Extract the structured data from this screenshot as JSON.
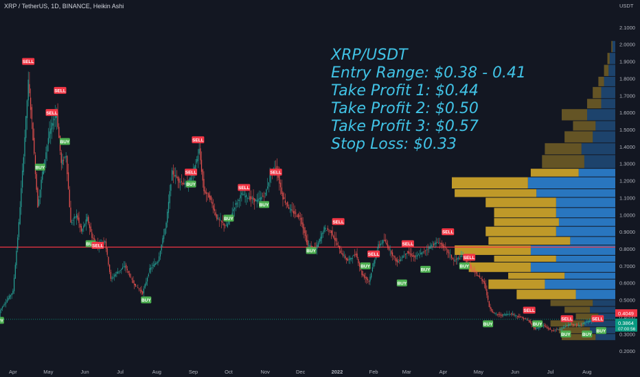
{
  "header": {
    "symbol_line": "XRP / TetherUS, 1D, BINANCE, Heikin Ashi"
  },
  "annotation": {
    "lines": [
      "XRP/USDT",
      "Entry Range: $0.38 - 0.41",
      "Take Profit 1: $0.44",
      "Take Profit 2: $0.50",
      "Take Profit 3: $0.57",
      "Stop Loss: $0.33"
    ]
  },
  "chart_data": {
    "type": "candlestick",
    "currency_label": "USDT",
    "y_axis": {
      "ticks": [
        "2.1000",
        "2.0000",
        "1.9000",
        "1.8000",
        "1.7000",
        "1.6000",
        "1.5000",
        "1.4000",
        "1.3000",
        "1.2000",
        "1.1000",
        "1.0000",
        "0.9000",
        "0.8000",
        "0.7000",
        "0.6000",
        "0.5000",
        "0.4000",
        "0.3000",
        "0.2000"
      ],
      "tick_values": [
        2.1,
        2.0,
        1.9,
        1.8,
        1.7,
        1.6,
        1.5,
        1.4,
        1.3,
        1.2,
        1.1,
        1.0,
        0.9,
        0.8,
        0.7,
        0.6,
        0.5,
        0.4,
        0.3,
        0.2
      ],
      "ylim": [
        0.12,
        2.18
      ]
    },
    "x_axis": {
      "labels": [
        "Apr",
        "May",
        "Jun",
        "Jul",
        "Aug",
        "Sep",
        "Oct",
        "Nov",
        "Dec",
        "2022",
        "Feb",
        "Mar",
        "Apr",
        "May",
        "Jun",
        "Jul",
        "Aug"
      ],
      "xlim": [
        "2021-03-21",
        "2022-08-25"
      ]
    },
    "price_path": [
      [
        "2021-03-21",
        0.44
      ],
      [
        "2021-04-01",
        0.55
      ],
      [
        "2021-04-06",
        0.95
      ],
      [
        "2021-04-10",
        1.35
      ],
      [
        "2021-04-14",
        1.78
      ],
      [
        "2021-04-17",
        1.55
      ],
      [
        "2021-04-22",
        1.05
      ],
      [
        "2021-04-26",
        1.25
      ],
      [
        "2021-05-01",
        1.45
      ],
      [
        "2021-05-05",
        1.55
      ],
      [
        "2021-05-08",
        1.6
      ],
      [
        "2021-05-12",
        1.3
      ],
      [
        "2021-05-16",
        1.35
      ],
      [
        "2021-05-20",
        0.95
      ],
      [
        "2021-05-25",
        1.0
      ],
      [
        "2021-05-29",
        0.9
      ],
      [
        "2021-06-03",
        0.98
      ],
      [
        "2021-06-07",
        0.87
      ],
      [
        "2021-06-12",
        0.82
      ],
      [
        "2021-06-18",
        0.85
      ],
      [
        "2021-06-23",
        0.62
      ],
      [
        "2021-06-28",
        0.66
      ],
      [
        "2021-07-05",
        0.7
      ],
      [
        "2021-07-12",
        0.6
      ],
      [
        "2021-07-20",
        0.54
      ],
      [
        "2021-07-26",
        0.68
      ],
      [
        "2021-08-02",
        0.73
      ],
      [
        "2021-08-09",
        0.95
      ],
      [
        "2021-08-14",
        1.25
      ],
      [
        "2021-08-20",
        1.2
      ],
      [
        "2021-08-27",
        1.17
      ],
      [
        "2021-09-02",
        1.27
      ],
      [
        "2021-09-06",
        1.38
      ],
      [
        "2021-09-10",
        1.14
      ],
      [
        "2021-09-15",
        1.1
      ],
      [
        "2021-09-21",
        0.98
      ],
      [
        "2021-09-29",
        0.93
      ],
      [
        "2021-10-06",
        1.05
      ],
      [
        "2021-10-12",
        1.12
      ],
      [
        "2021-10-18",
        1.1
      ],
      [
        "2021-10-25",
        1.08
      ],
      [
        "2021-11-01",
        1.12
      ],
      [
        "2021-11-06",
        1.25
      ],
      [
        "2021-11-10",
        1.28
      ],
      [
        "2021-11-16",
        1.1
      ],
      [
        "2021-11-22",
        1.03
      ],
      [
        "2021-12-01",
        0.98
      ],
      [
        "2021-12-07",
        0.82
      ],
      [
        "2021-12-14",
        0.8
      ],
      [
        "2021-12-21",
        0.92
      ],
      [
        "2021-12-27",
        0.9
      ],
      [
        "2022-01-04",
        0.78
      ],
      [
        "2022-01-10",
        0.73
      ],
      [
        "2022-01-17",
        0.77
      ],
      [
        "2022-01-22",
        0.65
      ],
      [
        "2022-01-28",
        0.61
      ],
      [
        "2022-02-05",
        0.82
      ],
      [
        "2022-02-10",
        0.85
      ],
      [
        "2022-02-14",
        0.8
      ],
      [
        "2022-02-21",
        0.72
      ],
      [
        "2022-03-01",
        0.78
      ],
      [
        "2022-03-08",
        0.75
      ],
      [
        "2022-03-15",
        0.78
      ],
      [
        "2022-03-22",
        0.82
      ],
      [
        "2022-03-28",
        0.84
      ],
      [
        "2022-04-03",
        0.8
      ],
      [
        "2022-04-10",
        0.73
      ],
      [
        "2022-04-18",
        0.76
      ],
      [
        "2022-04-25",
        0.68
      ],
      [
        "2022-05-02",
        0.63
      ],
      [
        "2022-05-06",
        0.6
      ],
      [
        "2022-05-10",
        0.46
      ],
      [
        "2022-05-14",
        0.42
      ],
      [
        "2022-05-20",
        0.41
      ],
      [
        "2022-05-28",
        0.42
      ],
      [
        "2022-06-05",
        0.4
      ],
      [
        "2022-06-12",
        0.38
      ],
      [
        "2022-06-18",
        0.33
      ],
      [
        "2022-06-25",
        0.35
      ],
      [
        "2022-07-02",
        0.32
      ],
      [
        "2022-07-10",
        0.33
      ],
      [
        "2022-07-18",
        0.36
      ],
      [
        "2022-07-24",
        0.35
      ],
      [
        "2022-08-01",
        0.37
      ],
      [
        "2022-08-05",
        0.38
      ],
      [
        "2022-08-09",
        0.3864
      ]
    ],
    "horizontal_levels": [
      {
        "price": 0.81,
        "color": "#f23645"
      },
      {
        "price": 0.3864,
        "color": "#089981"
      }
    ],
    "price_badges": [
      {
        "value": "0.4049",
        "price": 0.4049,
        "color": "#f23645"
      },
      {
        "value": "0.3864",
        "price": 0.3864,
        "color": "#089981",
        "sub": "07:00:56"
      }
    ],
    "signals": [
      {
        "label": "BUY",
        "date": "2021-03-20",
        "price": 0.38
      },
      {
        "label": "SELL",
        "date": "2021-04-14",
        "price": 1.9
      },
      {
        "label": "BUY",
        "date": "2021-04-24",
        "price": 1.28
      },
      {
        "label": "SELL",
        "date": "2021-05-04",
        "price": 1.6
      },
      {
        "label": "SELL",
        "date": "2021-05-11",
        "price": 1.73
      },
      {
        "label": "BUY",
        "date": "2021-05-15",
        "price": 1.43
      },
      {
        "label": "BUY",
        "date": "2021-06-06",
        "price": 0.83
      },
      {
        "label": "SELL",
        "date": "2021-06-12",
        "price": 0.82
      },
      {
        "label": "BUY",
        "date": "2021-07-23",
        "price": 0.5
      },
      {
        "label": "SELL",
        "date": "2021-08-30",
        "price": 1.25
      },
      {
        "label": "BUY",
        "date": "2021-08-30",
        "price": 1.18
      },
      {
        "label": "SELL",
        "date": "2021-09-05",
        "price": 1.44
      },
      {
        "label": "BUY",
        "date": "2021-10-01",
        "price": 0.98
      },
      {
        "label": "SELL",
        "date": "2021-10-14",
        "price": 1.16
      },
      {
        "label": "BUY",
        "date": "2021-10-31",
        "price": 1.06
      },
      {
        "label": "SELL",
        "date": "2021-11-10",
        "price": 1.25
      },
      {
        "label": "BUY",
        "date": "2021-12-10",
        "price": 0.79
      },
      {
        "label": "SELL",
        "date": "2022-01-02",
        "price": 0.96
      },
      {
        "label": "BUY",
        "date": "2022-01-25",
        "price": 0.7
      },
      {
        "label": "SELL",
        "date": "2022-02-01",
        "price": 0.77
      },
      {
        "label": "BUY",
        "date": "2022-02-25",
        "price": 0.6
      },
      {
        "label": "SELL",
        "date": "2022-03-02",
        "price": 0.83
      },
      {
        "label": "BUY",
        "date": "2022-03-17",
        "price": 0.68
      },
      {
        "label": "SELL",
        "date": "2022-04-05",
        "price": 0.9
      },
      {
        "label": "BUY",
        "date": "2022-04-19",
        "price": 0.7
      },
      {
        "label": "SELL",
        "date": "2022-04-23",
        "price": 0.75
      },
      {
        "label": "BUY",
        "date": "2022-05-09",
        "price": 0.36
      },
      {
        "label": "SELL",
        "date": "2022-06-13",
        "price": 0.44
      },
      {
        "label": "BUY",
        "date": "2022-06-20",
        "price": 0.36
      },
      {
        "label": "BUY",
        "date": "2022-07-14",
        "price": 0.3
      },
      {
        "label": "SELL",
        "date": "2022-07-15",
        "price": 0.39
      },
      {
        "label": "BUY",
        "date": "2022-08-01",
        "price": 0.3
      },
      {
        "label": "SELL",
        "date": "2022-08-10",
        "price": 0.39
      },
      {
        "label": "BUY",
        "date": "2022-08-13",
        "price": 0.32
      }
    ],
    "volume_profile": [
      {
        "low": 0.26,
        "high": 0.3,
        "up": 0.6,
        "down": 0.35
      },
      {
        "low": 0.3,
        "high": 0.34,
        "up": 0.55,
        "down": 0.45
      },
      {
        "low": 0.34,
        "high": 0.38,
        "up": 0.6,
        "down": 0.55
      },
      {
        "low": 0.38,
        "high": 0.42,
        "up": 0.4,
        "down": 0.3
      },
      {
        "low": 0.42,
        "high": 0.46,
        "up": 0.45,
        "down": 0.45
      },
      {
        "low": 0.46,
        "high": 0.5,
        "up": 0.75,
        "down": 0.4
      },
      {
        "low": 0.5,
        "high": 0.56,
        "up": 1.05,
        "down": 0.7
      },
      {
        "low": 0.56,
        "high": 0.62,
        "up": 1.0,
        "down": 1.25
      },
      {
        "low": 0.62,
        "high": 0.66,
        "up": 1.0,
        "down": 0.9
      },
      {
        "low": 0.66,
        "high": 0.72,
        "up": 1.1,
        "down": 1.5
      },
      {
        "low": 0.72,
        "high": 0.76,
        "up": 1.1,
        "down": 1.05
      },
      {
        "low": 0.76,
        "high": 0.82,
        "up": 1.35,
        "down": 1.5
      },
      {
        "low": 0.82,
        "high": 0.87,
        "up": 1.45,
        "down": 0.8
      },
      {
        "low": 0.87,
        "high": 0.93,
        "up": 1.25,
        "down": 1.05
      },
      {
        "low": 0.93,
        "high": 0.98,
        "up": 1.15,
        "down": 1.0
      },
      {
        "low": 0.98,
        "high": 1.04,
        "up": 1.1,
        "down": 1.05
      },
      {
        "low": 1.04,
        "high": 1.1,
        "up": 1.25,
        "down": 1.05
      },
      {
        "low": 1.1,
        "high": 1.15,
        "up": 1.45,
        "down": 1.4
      },
      {
        "low": 1.15,
        "high": 1.22,
        "up": 1.35,
        "down": 1.55
      },
      {
        "low": 1.22,
        "high": 1.27,
        "up": 0.85,
        "down": 0.65
      },
      {
        "low": 1.27,
        "high": 1.35,
        "up": 0.75,
        "down": 0.55
      },
      {
        "low": 1.35,
        "high": 1.42,
        "up": 0.65,
        "down": 0.6
      },
      {
        "low": 1.42,
        "high": 1.49,
        "up": 0.5,
        "down": 0.4
      },
      {
        "low": 1.49,
        "high": 1.55,
        "up": 0.4,
        "down": 0.35
      },
      {
        "low": 1.55,
        "high": 1.62,
        "up": 0.45,
        "down": 0.5
      },
      {
        "low": 1.62,
        "high": 1.68,
        "up": 0.25,
        "down": 0.25
      },
      {
        "low": 1.68,
        "high": 1.75,
        "up": 0.15,
        "down": 0.25
      },
      {
        "low": 1.75,
        "high": 1.81,
        "up": 0.1,
        "down": 0.2
      },
      {
        "low": 1.81,
        "high": 1.88,
        "up": 0.08,
        "down": 0.12
      },
      {
        "low": 1.88,
        "high": 1.95,
        "up": 0.04,
        "down": 0.1
      },
      {
        "low": 1.95,
        "high": 2.02,
        "up": 0.02,
        "down": 0.05
      }
    ],
    "grid": false,
    "colors": {
      "background": "#131722",
      "up_candle": "#26a69a",
      "down_candle": "#ef5350",
      "profile_up": "#c8a02a",
      "profile_down": "#2a7bc8",
      "annotation": "#41c3e6",
      "sell_label": "#f23645",
      "buy_label": "#4caf50"
    }
  }
}
